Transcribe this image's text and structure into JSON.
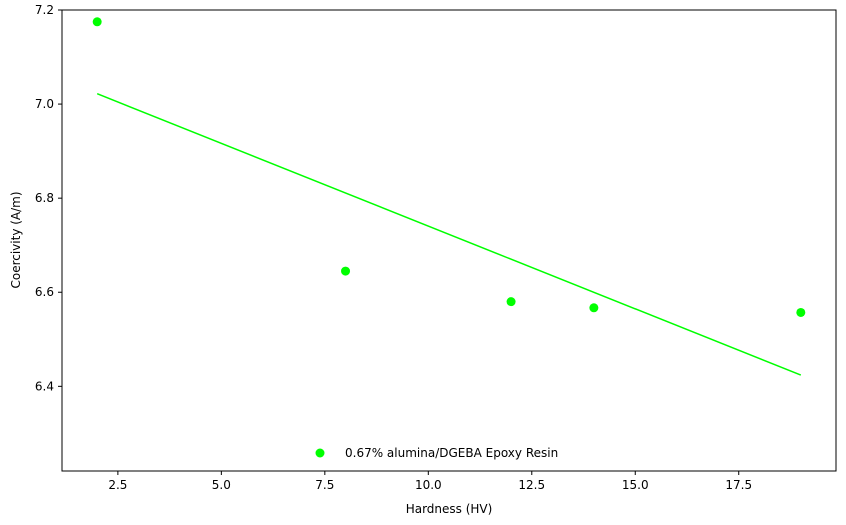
{
  "chart_data": {
    "type": "scatter",
    "xlabel": "Hardness (HV)",
    "ylabel": "Coercivity (A/m)",
    "xlim": [
      1.15,
      19.85
    ],
    "ylim": [
      6.22,
      7.2
    ],
    "xticks": [
      2.5,
      5.0,
      7.5,
      10.0,
      12.5,
      15.0,
      17.5
    ],
    "xtick_labels": [
      "2.5",
      "5.0",
      "7.5",
      "10.0",
      "12.5",
      "15.0",
      "17.5"
    ],
    "yticks": [
      6.4,
      6.6,
      6.8,
      7.0,
      7.2
    ],
    "ytick_labels": [
      "6.4",
      "6.6",
      "6.8",
      "7.0",
      "7.2"
    ],
    "grid": false,
    "legend_position": "bottom-center",
    "series": [
      {
        "name": "0.67% alumina/DGEBA Epoxy Resin",
        "marker": "circle",
        "color": "#00ff00",
        "x": [
          2,
          8,
          12,
          14,
          19
        ],
        "y": [
          7.175,
          6.645,
          6.58,
          6.567,
          6.557
        ]
      }
    ],
    "trendline": {
      "color": "#00ff00",
      "x": [
        2,
        19
      ],
      "y": [
        7.022,
        6.424
      ]
    }
  }
}
